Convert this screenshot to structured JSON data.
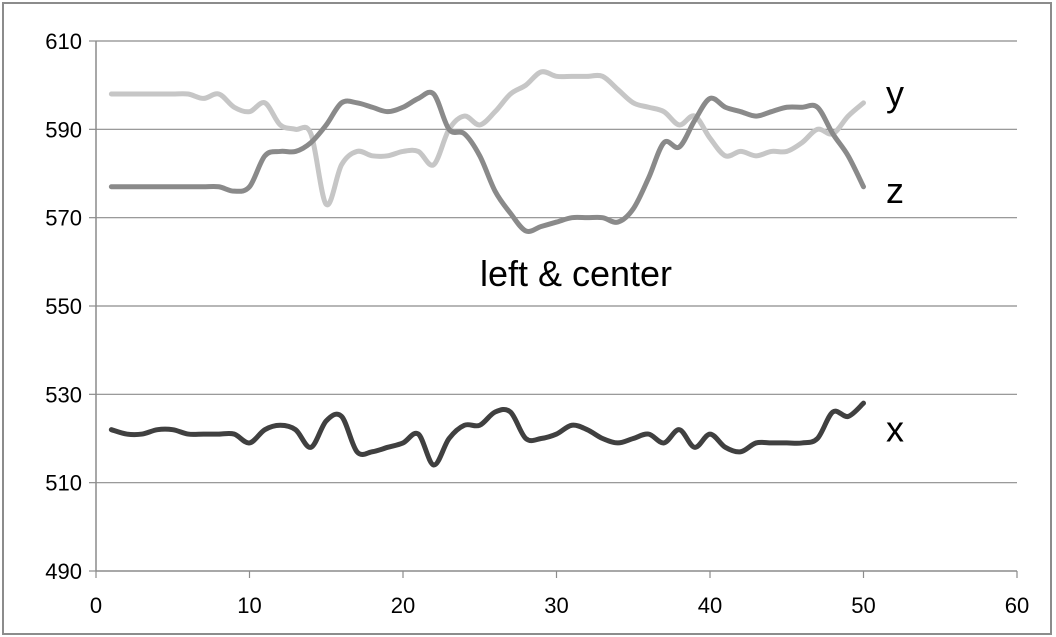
{
  "chart_data": {
    "type": "line",
    "title": "",
    "xlabel": "",
    "ylabel": "",
    "xlim": [
      0,
      60
    ],
    "ylim": [
      490,
      610
    ],
    "xticks": [
      0,
      10,
      20,
      30,
      40,
      50,
      60
    ],
    "yticks": [
      490,
      510,
      530,
      550,
      570,
      590,
      610
    ],
    "grid": "horizontal",
    "annotation": "left & center",
    "series": [
      {
        "name": "y",
        "color": "#c6c6c6",
        "points": [
          [
            1,
            598
          ],
          [
            2,
            598
          ],
          [
            3,
            598
          ],
          [
            4,
            598
          ],
          [
            5,
            598
          ],
          [
            6,
            598
          ],
          [
            7,
            597
          ],
          [
            8,
            598
          ],
          [
            9,
            595
          ],
          [
            10,
            594
          ],
          [
            11,
            596
          ],
          [
            12,
            591
          ],
          [
            13,
            590
          ],
          [
            14,
            589
          ],
          [
            15,
            573
          ],
          [
            16,
            582
          ],
          [
            17,
            585
          ],
          [
            18,
            584
          ],
          [
            19,
            584
          ],
          [
            20,
            585
          ],
          [
            21,
            585
          ],
          [
            22,
            582
          ],
          [
            23,
            590
          ],
          [
            24,
            593
          ],
          [
            25,
            591
          ],
          [
            26,
            594
          ],
          [
            27,
            598
          ],
          [
            28,
            600
          ],
          [
            29,
            603
          ],
          [
            30,
            602
          ],
          [
            31,
            602
          ],
          [
            32,
            602
          ],
          [
            33,
            602
          ],
          [
            34,
            599
          ],
          [
            35,
            596
          ],
          [
            36,
            595
          ],
          [
            37,
            594
          ],
          [
            38,
            591
          ],
          [
            39,
            593
          ],
          [
            40,
            588
          ],
          [
            41,
            584
          ],
          [
            42,
            585
          ],
          [
            43,
            584
          ],
          [
            44,
            585
          ],
          [
            45,
            585
          ],
          [
            46,
            587
          ],
          [
            47,
            590
          ],
          [
            48,
            589
          ],
          [
            49,
            593
          ],
          [
            50,
            596
          ]
        ]
      },
      {
        "name": "z",
        "color": "#8a8a8a",
        "points": [
          [
            1,
            577
          ],
          [
            2,
            577
          ],
          [
            3,
            577
          ],
          [
            4,
            577
          ],
          [
            5,
            577
          ],
          [
            6,
            577
          ],
          [
            7,
            577
          ],
          [
            8,
            577
          ],
          [
            9,
            576
          ],
          [
            10,
            577
          ],
          [
            11,
            584
          ],
          [
            12,
            585
          ],
          [
            13,
            585
          ],
          [
            14,
            587
          ],
          [
            15,
            591
          ],
          [
            16,
            596
          ],
          [
            17,
            596
          ],
          [
            18,
            595
          ],
          [
            19,
            594
          ],
          [
            20,
            595
          ],
          [
            21,
            597
          ],
          [
            22,
            598
          ],
          [
            23,
            590
          ],
          [
            24,
            589
          ],
          [
            25,
            584
          ],
          [
            26,
            576
          ],
          [
            27,
            571
          ],
          [
            28,
            567
          ],
          [
            29,
            568
          ],
          [
            30,
            569
          ],
          [
            31,
            570
          ],
          [
            32,
            570
          ],
          [
            33,
            570
          ],
          [
            34,
            569
          ],
          [
            35,
            572
          ],
          [
            36,
            579
          ],
          [
            37,
            587
          ],
          [
            38,
            586
          ],
          [
            39,
            592
          ],
          [
            40,
            597
          ],
          [
            41,
            595
          ],
          [
            42,
            594
          ],
          [
            43,
            593
          ],
          [
            44,
            594
          ],
          [
            45,
            595
          ],
          [
            46,
            595
          ],
          [
            47,
            595
          ],
          [
            48,
            589
          ],
          [
            49,
            584
          ],
          [
            50,
            577
          ]
        ]
      },
      {
        "name": "x",
        "color": "#404040",
        "points": [
          [
            1,
            522
          ],
          [
            2,
            521
          ],
          [
            3,
            521
          ],
          [
            4,
            522
          ],
          [
            5,
            522
          ],
          [
            6,
            521
          ],
          [
            7,
            521
          ],
          [
            8,
            521
          ],
          [
            9,
            521
          ],
          [
            10,
            519
          ],
          [
            11,
            522
          ],
          [
            12,
            523
          ],
          [
            13,
            522
          ],
          [
            14,
            518
          ],
          [
            15,
            524
          ],
          [
            16,
            525
          ],
          [
            17,
            517
          ],
          [
            18,
            517
          ],
          [
            19,
            518
          ],
          [
            20,
            519
          ],
          [
            21,
            521
          ],
          [
            22,
            514
          ],
          [
            23,
            520
          ],
          [
            24,
            523
          ],
          [
            25,
            523
          ],
          [
            26,
            526
          ],
          [
            27,
            526
          ],
          [
            28,
            520
          ],
          [
            29,
            520
          ],
          [
            30,
            521
          ],
          [
            31,
            523
          ],
          [
            32,
            522
          ],
          [
            33,
            520
          ],
          [
            34,
            519
          ],
          [
            35,
            520
          ],
          [
            36,
            521
          ],
          [
            37,
            519
          ],
          [
            38,
            522
          ],
          [
            39,
            518
          ],
          [
            40,
            521
          ],
          [
            41,
            518
          ],
          [
            42,
            517
          ],
          [
            43,
            519
          ],
          [
            44,
            519
          ],
          [
            45,
            519
          ],
          [
            46,
            519
          ],
          [
            47,
            520
          ],
          [
            48,
            526
          ],
          [
            49,
            525
          ],
          [
            50,
            528
          ]
        ]
      }
    ]
  }
}
